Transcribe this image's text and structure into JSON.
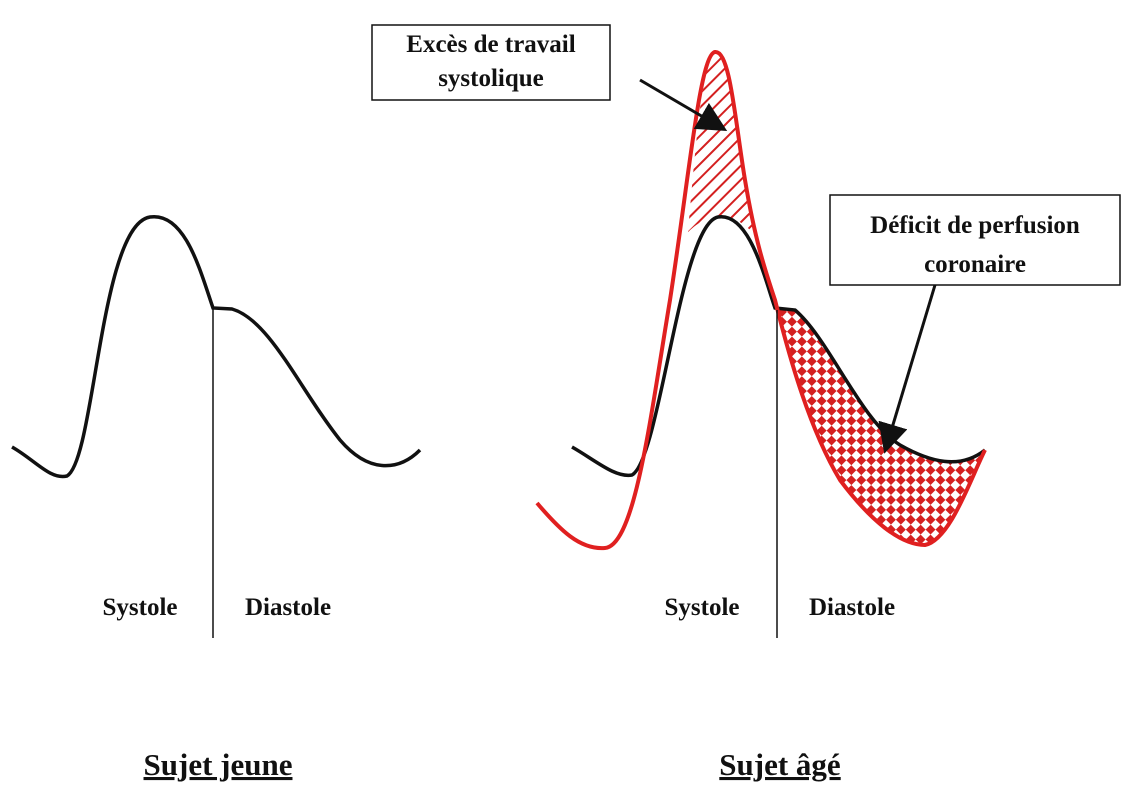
{
  "left_panel": {
    "systole": "Systole",
    "diastole": "Diastole",
    "title": "Sujet jeune"
  },
  "right_panel": {
    "systole": "Systole",
    "diastole": "Diastole",
    "title": "Sujet âgé",
    "callouts": [
      {
        "lines": [
          "Excès de travail",
          "systolique"
        ]
      },
      {
        "lines": [
          "Déficit de perfusion",
          "coronaire"
        ]
      }
    ]
  }
}
